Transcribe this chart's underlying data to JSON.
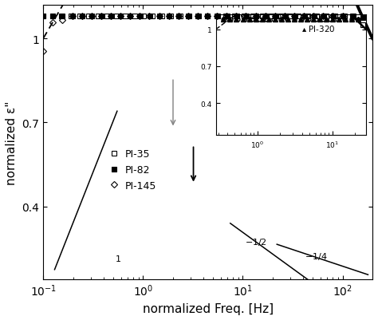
{
  "xlabel": "normalized Freq. [Hz]",
  "ylabel": "normalized ε\"",
  "background_color": "#ffffff",
  "alpha_main": 0.55,
  "beta_main": 0.65,
  "alpha_dash": 0.42,
  "beta_dash": 0.5,
  "legend_labels": [
    "PI-35",
    "PI-82",
    "PI-145"
  ],
  "inset_legend_label": "PI-320"
}
